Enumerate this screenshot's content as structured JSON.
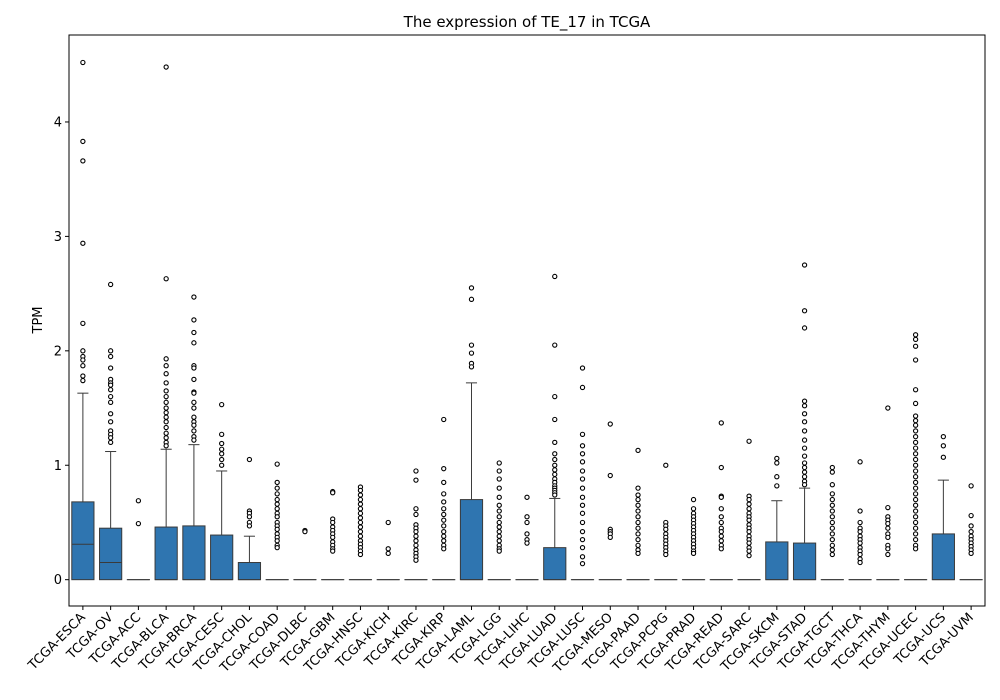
{
  "chart_data": {
    "type": "box",
    "title": "The expression of TE_17 in TCGA",
    "xlabel": "",
    "ylabel": "TPM",
    "ylim": [
      -0.23,
      4.76
    ],
    "yticks": [
      0,
      1,
      2,
      3,
      4
    ],
    "box_color": "#2f75b0",
    "categories": [
      "TCGA-ESCA",
      "TCGA-OV",
      "TCGA-ACC",
      "TCGA-BLCA",
      "TCGA-BRCA",
      "TCGA-CESC",
      "TCGA-CHOL",
      "TCGA-COAD",
      "TCGA-DLBC",
      "TCGA-GBM",
      "TCGA-HNSC",
      "TCGA-KICH",
      "TCGA-KIRC",
      "TCGA-KIRP",
      "TCGA-LAML",
      "TCGA-LGG",
      "TCGA-LIHC",
      "TCGA-LUAD",
      "TCGA-LUSC",
      "TCGA-MESO",
      "TCGA-PAAD",
      "TCGA-PCPG",
      "TCGA-PRAD",
      "TCGA-READ",
      "TCGA-SARC",
      "TCGA-SKCM",
      "TCGA-STAD",
      "TCGA-TGCT",
      "TCGA-THCA",
      "TCGA-THYM",
      "TCGA-UCEC",
      "TCGA-UCS",
      "TCGA-UVM"
    ],
    "boxes": [
      {
        "q1": 0,
        "median": 0.31,
        "q3": 0.68,
        "whisker_low": 0,
        "whisker_high": 1.63,
        "outliers": [
          4.52,
          3.83,
          3.66,
          2.94,
          2.24,
          2.0,
          1.95,
          1.92,
          1.87,
          1.78,
          1.74
        ]
      },
      {
        "q1": 0,
        "median": 0.15,
        "q3": 0.45,
        "whisker_low": 0,
        "whisker_high": 1.12,
        "outliers": [
          2.58,
          2.0,
          1.95,
          1.85,
          1.75,
          1.72,
          1.7,
          1.66,
          1.6,
          1.55,
          1.45,
          1.38,
          1.3,
          1.27,
          1.24,
          1.2
        ]
      },
      {
        "q1": 0,
        "median": 0,
        "q3": 0,
        "whisker_low": 0,
        "whisker_high": 0,
        "outliers": [
          0.69,
          0.49
        ]
      },
      {
        "q1": 0,
        "median": 0,
        "q3": 0.46,
        "whisker_low": 0,
        "whisker_high": 1.14,
        "outliers": [
          4.48,
          2.63,
          1.93,
          1.87,
          1.8,
          1.72,
          1.65,
          1.6,
          1.55,
          1.5,
          1.46,
          1.42,
          1.38,
          1.33,
          1.28,
          1.24,
          1.2,
          1.17
        ]
      },
      {
        "q1": 0,
        "median": 0,
        "q3": 0.47,
        "whisker_low": 0,
        "whisker_high": 1.18,
        "outliers": [
          2.47,
          2.27,
          2.16,
          2.07,
          1.87,
          1.85,
          1.75,
          1.64,
          1.63,
          1.55,
          1.5,
          1.42,
          1.38,
          1.35,
          1.3,
          1.25,
          1.22
        ]
      },
      {
        "q1": 0,
        "median": 0,
        "q3": 0.39,
        "whisker_low": 0,
        "whisker_high": 0.95,
        "outliers": [
          1.53,
          1.27,
          1.19,
          1.14,
          1.1,
          1.05,
          1.0
        ]
      },
      {
        "q1": 0,
        "median": 0,
        "q3": 0.15,
        "whisker_low": 0,
        "whisker_high": 0.38,
        "outliers": [
          1.05,
          0.6,
          0.58,
          0.55,
          0.5,
          0.47
        ]
      },
      {
        "q1": 0,
        "median": 0,
        "q3": 0,
        "whisker_low": 0,
        "whisker_high": 0,
        "outliers": [
          1.01,
          0.85,
          0.8,
          0.75,
          0.7,
          0.66,
          0.62,
          0.58,
          0.55,
          0.5,
          0.47,
          0.44,
          0.4,
          0.37,
          0.34,
          0.3,
          0.28
        ]
      },
      {
        "q1": 0,
        "median": 0,
        "q3": 0,
        "whisker_low": 0,
        "whisker_high": 0,
        "outliers": [
          0.43,
          0.42
        ]
      },
      {
        "q1": 0,
        "median": 0,
        "q3": 0,
        "whisker_low": 0,
        "whisker_high": 0,
        "outliers": [
          0.77,
          0.76,
          0.53,
          0.5,
          0.46,
          0.43,
          0.4,
          0.37,
          0.33,
          0.3,
          0.27,
          0.25
        ]
      },
      {
        "q1": 0,
        "median": 0,
        "q3": 0,
        "whisker_low": 0,
        "whisker_high": 0,
        "outliers": [
          0.81,
          0.78,
          0.74,
          0.7,
          0.66,
          0.62,
          0.58,
          0.54,
          0.5,
          0.46,
          0.42,
          0.38,
          0.34,
          0.31,
          0.28,
          0.25,
          0.22
        ]
      },
      {
        "q1": 0,
        "median": 0,
        "q3": 0,
        "whisker_low": 0,
        "whisker_high": 0,
        "outliers": [
          0.5,
          0.27,
          0.23
        ]
      },
      {
        "q1": 0,
        "median": 0,
        "q3": 0,
        "whisker_low": 0,
        "whisker_high": 0,
        "outliers": [
          0.95,
          0.87,
          0.62,
          0.57,
          0.48,
          0.45,
          0.42,
          0.38,
          0.34,
          0.3,
          0.26,
          0.23,
          0.2,
          0.17
        ]
      },
      {
        "q1": 0,
        "median": 0,
        "q3": 0,
        "whisker_low": 0,
        "whisker_high": 0,
        "outliers": [
          1.4,
          0.97,
          0.85,
          0.75,
          0.68,
          0.62,
          0.57,
          0.52,
          0.47,
          0.42,
          0.38,
          0.34,
          0.3,
          0.27
        ]
      },
      {
        "q1": 0,
        "median": 0,
        "q3": 0.7,
        "whisker_low": 0,
        "whisker_high": 1.72,
        "outliers": [
          2.55,
          2.45,
          2.05,
          1.98,
          1.89,
          1.86
        ]
      },
      {
        "q1": 0,
        "median": 0,
        "q3": 0,
        "whisker_low": 0,
        "whisker_high": 0,
        "outliers": [
          1.02,
          0.95,
          0.88,
          0.8,
          0.72,
          0.65,
          0.6,
          0.55,
          0.5,
          0.46,
          0.42,
          0.38,
          0.34,
          0.3,
          0.27,
          0.25
        ]
      },
      {
        "q1": 0,
        "median": 0,
        "q3": 0,
        "whisker_low": 0,
        "whisker_high": 0,
        "outliers": [
          0.72,
          0.55,
          0.5,
          0.4,
          0.35,
          0.32
        ]
      },
      {
        "q1": 0,
        "median": 0,
        "q3": 0.28,
        "whisker_low": 0,
        "whisker_high": 0.71,
        "outliers": [
          2.65,
          2.05,
          1.6,
          1.4,
          1.2,
          1.1,
          1.05,
          1.0,
          0.96,
          0.92,
          0.88,
          0.85,
          0.82,
          0.8,
          0.78,
          0.76,
          0.74
        ]
      },
      {
        "q1": 0,
        "median": 0,
        "q3": 0,
        "whisker_low": 0,
        "whisker_high": 0,
        "outliers": [
          1.85,
          1.68,
          1.27,
          1.17,
          1.1,
          1.03,
          0.95,
          0.88,
          0.8,
          0.72,
          0.65,
          0.58,
          0.5,
          0.42,
          0.35,
          0.28,
          0.2,
          0.14
        ]
      },
      {
        "q1": 0,
        "median": 0,
        "q3": 0,
        "whisker_low": 0,
        "whisker_high": 0,
        "outliers": [
          1.36,
          0.91,
          0.44,
          0.42,
          0.4,
          0.37
        ]
      },
      {
        "q1": 0,
        "median": 0,
        "q3": 0,
        "whisker_low": 0,
        "whisker_high": 0,
        "outliers": [
          1.13,
          0.8,
          0.74,
          0.7,
          0.65,
          0.6,
          0.55,
          0.5,
          0.45,
          0.4,
          0.35,
          0.3,
          0.26,
          0.23
        ]
      },
      {
        "q1": 0,
        "median": 0,
        "q3": 0,
        "whisker_low": 0,
        "whisker_high": 0,
        "outliers": [
          1.0,
          0.5,
          0.47,
          0.44,
          0.4,
          0.37,
          0.34,
          0.31,
          0.28,
          0.25,
          0.22
        ]
      },
      {
        "q1": 0,
        "median": 0,
        "q3": 0,
        "whisker_low": 0,
        "whisker_high": 0,
        "outliers": [
          0.7,
          0.62,
          0.58,
          0.55,
          0.52,
          0.49,
          0.46,
          0.43,
          0.4,
          0.37,
          0.34,
          0.31,
          0.28,
          0.25,
          0.23
        ]
      },
      {
        "q1": 0,
        "median": 0,
        "q3": 0,
        "whisker_low": 0,
        "whisker_high": 0,
        "outliers": [
          1.37,
          0.98,
          0.73,
          0.72,
          0.62,
          0.55,
          0.5,
          0.45,
          0.42,
          0.38,
          0.34,
          0.3,
          0.27
        ]
      },
      {
        "q1": 0,
        "median": 0,
        "q3": 0,
        "whisker_low": 0,
        "whisker_high": 0,
        "outliers": [
          1.21,
          0.73,
          0.7,
          0.66,
          0.62,
          0.58,
          0.55,
          0.52,
          0.48,
          0.45,
          0.42,
          0.38,
          0.35,
          0.32,
          0.28,
          0.25,
          0.21
        ]
      },
      {
        "q1": 0,
        "median": 0,
        "q3": 0.33,
        "whisker_low": 0,
        "whisker_high": 0.69,
        "outliers": [
          1.06,
          1.02,
          0.9,
          0.82
        ]
      },
      {
        "q1": 0,
        "median": 0,
        "q3": 0.32,
        "whisker_low": 0,
        "whisker_high": 0.8,
        "outliers": [
          2.75,
          2.35,
          2.2,
          1.56,
          1.52,
          1.45,
          1.38,
          1.3,
          1.22,
          1.15,
          1.08,
          1.02,
          0.98,
          0.94,
          0.9,
          0.86,
          0.83
        ]
      },
      {
        "q1": 0,
        "median": 0,
        "q3": 0,
        "whisker_low": 0,
        "whisker_high": 0,
        "outliers": [
          0.98,
          0.94,
          0.83,
          0.75,
          0.7,
          0.65,
          0.6,
          0.55,
          0.5,
          0.45,
          0.4,
          0.35,
          0.3,
          0.26,
          0.22
        ]
      },
      {
        "q1": 0,
        "median": 0,
        "q3": 0,
        "whisker_low": 0,
        "whisker_high": 0,
        "outliers": [
          1.03,
          0.6,
          0.5,
          0.45,
          0.42,
          0.38,
          0.35,
          0.32,
          0.28,
          0.25,
          0.22,
          0.18,
          0.15
        ]
      },
      {
        "q1": 0,
        "median": 0,
        "q3": 0,
        "whisker_low": 0,
        "whisker_high": 0,
        "outliers": [
          1.5,
          0.63,
          0.55,
          0.52,
          0.49,
          0.45,
          0.4,
          0.37,
          0.3,
          0.27,
          0.22
        ]
      },
      {
        "q1": 0,
        "median": 0,
        "q3": 0,
        "whisker_low": 0,
        "whisker_high": 0,
        "outliers": [
          2.14,
          2.1,
          2.04,
          1.92,
          1.66,
          1.54,
          1.43,
          1.39,
          1.35,
          1.3,
          1.25,
          1.2,
          1.15,
          1.1,
          1.05,
          1.0,
          0.95,
          0.9,
          0.85,
          0.8,
          0.75,
          0.7,
          0.65,
          0.6,
          0.55,
          0.5,
          0.45,
          0.4,
          0.35,
          0.3,
          0.27
        ]
      },
      {
        "q1": 0,
        "median": 0,
        "q3": 0.4,
        "whisker_low": 0,
        "whisker_high": 0.87,
        "outliers": [
          1.25,
          1.17,
          1.07
        ]
      },
      {
        "q1": 0,
        "median": 0,
        "q3": 0,
        "whisker_low": 0,
        "whisker_high": 0,
        "outliers": [
          0.82,
          0.56,
          0.47,
          0.42,
          0.38,
          0.35,
          0.32,
          0.29,
          0.26,
          0.23
        ]
      }
    ]
  }
}
